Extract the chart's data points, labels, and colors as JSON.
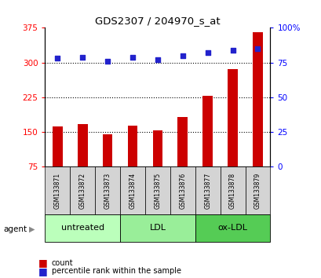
{
  "title": "GDS2307 / 204970_s_at",
  "samples": [
    "GSM133871",
    "GSM133872",
    "GSM133873",
    "GSM133874",
    "GSM133875",
    "GSM133876",
    "GSM133877",
    "GSM133878",
    "GSM133879"
  ],
  "counts": [
    162,
    168,
    145,
    163,
    153,
    183,
    228,
    285,
    365
  ],
  "percentiles": [
    78,
    79,
    76,
    79,
    77,
    80,
    82,
    84,
    85
  ],
  "ylim_left": [
    75,
    375
  ],
  "ylim_right": [
    0,
    100
  ],
  "yticks_left": [
    75,
    150,
    225,
    300,
    375
  ],
  "yticks_right": [
    0,
    25,
    50,
    75,
    100
  ],
  "yticklabels_right": [
    "0",
    "25",
    "50",
    "75",
    "100%"
  ],
  "bar_color": "#cc0000",
  "dot_color": "#2222cc",
  "groups": [
    {
      "label": "untreated",
      "start": 0,
      "end": 3,
      "color": "#bbffbb"
    },
    {
      "label": "LDL",
      "start": 3,
      "end": 6,
      "color": "#99ee99"
    },
    {
      "label": "ox-LDL",
      "start": 6,
      "end": 9,
      "color": "#55cc55"
    }
  ],
  "agent_label": "agent",
  "legend_count_label": "count",
  "legend_pct_label": "percentile rank within the sample",
  "background_color": "#ffffff",
  "bar_width": 0.4
}
